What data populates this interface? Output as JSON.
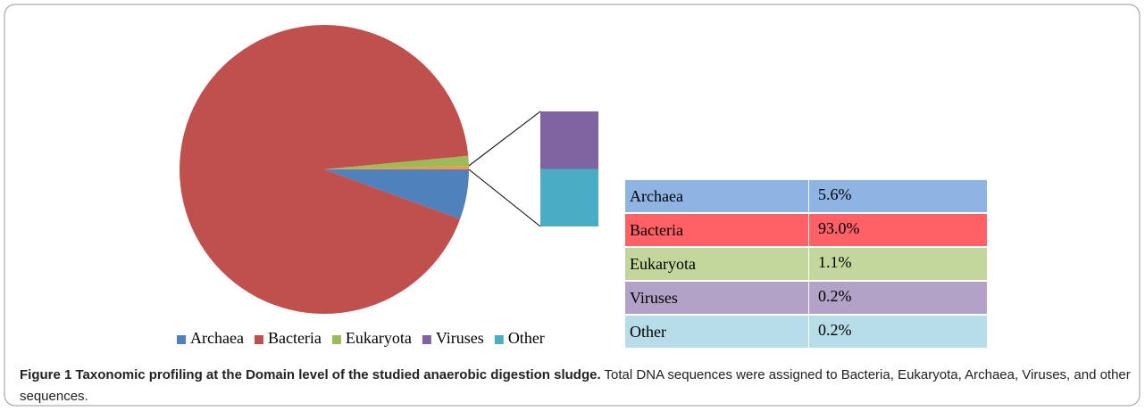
{
  "chart_data": {
    "type": "pie-of-bar",
    "categories": [
      "Archaea",
      "Bacteria",
      "Eukaryota",
      "Viruses",
      "Other"
    ],
    "values": [
      5.6,
      93.0,
      1.1,
      0.2,
      0.2
    ],
    "value_labels": [
      "5.6%",
      "93.0%",
      "1.1%",
      "0.2%",
      "0.2%"
    ],
    "colors": [
      "#4f81bd",
      "#c0504d",
      "#9bbb59",
      "#8064a2",
      "#4bacc6"
    ],
    "table_colors": [
      "#8eb4e3",
      "#ff6166",
      "#c3d69b",
      "#b3a2c7",
      "#b7dde8"
    ],
    "legend": "bottom"
  },
  "caption": {
    "title": "Figure 1 Taxonomic profiling at the Domain level of the studied anaerobic digestion sludge.",
    "text": "Total DNA sequences were assigned to Bacteria, Eukaryota, Archaea, Viruses, and other sequences."
  }
}
